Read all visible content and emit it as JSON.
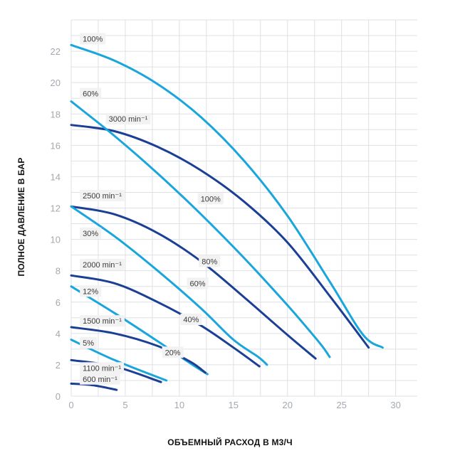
{
  "chart_data": {
    "type": "line",
    "title": "",
    "xlabel": "ОБЪЕМНЫЙ РАСХОД В М3/Ч",
    "ylabel": "ПОЛНОЕ ДАВЛЕНИЕ В БАР",
    "xlim": [
      0,
      32
    ],
    "ylim": [
      0,
      24
    ],
    "xticks": [
      0,
      5,
      10,
      15,
      20,
      25,
      30
    ],
    "yticks": [
      0,
      2,
      4,
      6,
      8,
      10,
      12,
      14,
      16,
      18,
      20,
      22
    ],
    "grid": true,
    "colors": {
      "light": "#1aa6dd",
      "dark": "#1b3f95",
      "grid": "#dde1e5",
      "tick": "#a3a9b0"
    },
    "series": [
      {
        "color": "#1aa6dd",
        "x": [
          0,
          4,
          8,
          12,
          16,
          20,
          24,
          27,
          28.8
        ],
        "y": [
          22.4,
          21.4,
          19.9,
          17.8,
          15.0,
          11.5,
          7.2,
          3.9,
          3.1
        ]
      },
      {
        "color": "#1b3f95",
        "x": [
          0,
          4,
          8,
          12,
          16,
          20,
          24,
          27.5
        ],
        "y": [
          17.3,
          16.9,
          15.9,
          14.4,
          12.4,
          9.8,
          6.3,
          3.1
        ]
      },
      {
        "color": "#1aa6dd",
        "x": [
          0,
          4,
          8,
          12,
          16,
          20,
          22,
          23.2,
          23.9
        ],
        "y": [
          18.8,
          16.6,
          14.2,
          11.6,
          8.8,
          5.8,
          4.2,
          3.2,
          2.5
        ]
      },
      {
        "color": "#1b3f95",
        "x": [
          0,
          4,
          8,
          12,
          16,
          20,
          22.6
        ],
        "y": [
          12.1,
          11.6,
          10.4,
          8.6,
          6.3,
          3.9,
          2.4
        ]
      },
      {
        "color": "#1aa6dd",
        "x": [
          0,
          4,
          8,
          12,
          15,
          17.3,
          18.1
        ],
        "y": [
          12.1,
          10.2,
          8.0,
          5.6,
          3.6,
          2.5,
          2.0
        ]
      },
      {
        "color": "#1b3f95",
        "x": [
          0,
          4,
          8,
          12,
          15,
          17.4
        ],
        "y": [
          7.7,
          7.2,
          6.0,
          4.5,
          3.1,
          1.9
        ]
      },
      {
        "color": "#1aa6dd",
        "x": [
          0,
          4,
          8,
          11,
          12.6
        ],
        "y": [
          7.0,
          5.3,
          3.5,
          2.1,
          1.4
        ]
      },
      {
        "color": "#1b3f95",
        "x": [
          0,
          4,
          8,
          11,
          12.4
        ],
        "y": [
          4.4,
          4.0,
          3.2,
          2.2,
          1.5
        ]
      },
      {
        "color": "#1aa6dd",
        "x": [
          0,
          4,
          8.8
        ],
        "y": [
          3.6,
          2.3,
          1.0
        ]
      },
      {
        "color": "#1b3f95",
        "x": [
          0,
          4,
          8.3
        ],
        "y": [
          2.3,
          1.9,
          0.9
        ]
      },
      {
        "color": "#1b3f95",
        "x": [
          0,
          2,
          4.2
        ],
        "y": [
          0.8,
          0.7,
          0.4
        ]
      }
    ],
    "annotations": [
      {
        "text": "100%",
        "x": 0.8,
        "y": 22.8
      },
      {
        "text": "60%",
        "x": 0.8,
        "y": 19.3
      },
      {
        "text": "3000 min⁻¹",
        "x": 3.2,
        "y": 17.7
      },
      {
        "text": "100%",
        "x": 11.7,
        "y": 12.6
      },
      {
        "text": "2500 min⁻¹",
        "x": 0.8,
        "y": 12.8
      },
      {
        "text": "30%",
        "x": 0.8,
        "y": 10.4
      },
      {
        "text": "80%",
        "x": 11.8,
        "y": 8.6
      },
      {
        "text": "2000 min⁻¹",
        "x": 0.8,
        "y": 8.4
      },
      {
        "text": "60%",
        "x": 10.7,
        "y": 7.2
      },
      {
        "text": "12%",
        "x": 0.8,
        "y": 6.7
      },
      {
        "text": "40%",
        "x": 10.1,
        "y": 4.9
      },
      {
        "text": "1500 min⁻¹",
        "x": 0.8,
        "y": 4.8
      },
      {
        "text": "5%",
        "x": 0.8,
        "y": 3.4
      },
      {
        "text": "20%",
        "x": 8.4,
        "y": 2.8
      },
      {
        "text": "1100 min⁻¹",
        "x": 0.8,
        "y": 1.8
      },
      {
        "text": "600 min⁻¹",
        "x": 0.8,
        "y": 1.1
      }
    ]
  }
}
